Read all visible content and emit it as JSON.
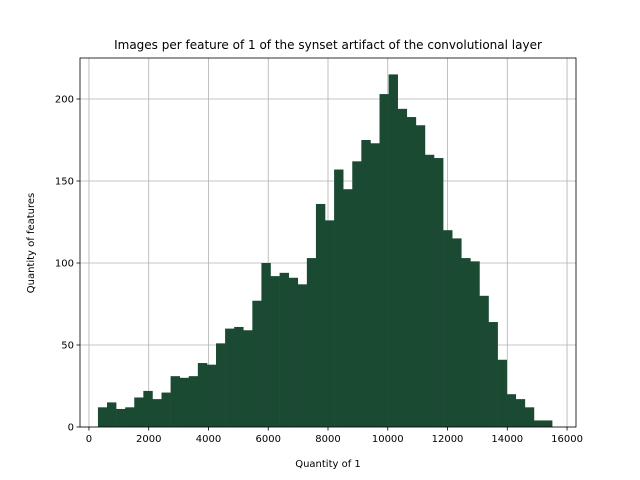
{
  "chart_data": {
    "type": "bar",
    "histogram": true,
    "title": "Images per feature of 1 of the synset artifact of the convolutional layer",
    "xlabel": "Quantity of 1",
    "ylabel": "Quantity of features",
    "xlim": [
      -300,
      16300
    ],
    "ylim": [
      0,
      225
    ],
    "xticks": [
      0,
      2000,
      4000,
      6000,
      8000,
      10000,
      12000,
      14000,
      16000
    ],
    "yticks": [
      0,
      50,
      100,
      150,
      200
    ],
    "grid": true,
    "bar_color": "#1b4a33",
    "bin_start": 300,
    "bin_width": 304,
    "counts": [
      12,
      15,
      11,
      12,
      18,
      22,
      17,
      21,
      31,
      30,
      31,
      39,
      38,
      51,
      60,
      61,
      59,
      77,
      100,
      92,
      94,
      91,
      87,
      103,
      136,
      126,
      157,
      145,
      162,
      175,
      173,
      203,
      215,
      194,
      189,
      184,
      166,
      164,
      120,
      115,
      103,
      101,
      80,
      64,
      41,
      20,
      17,
      12,
      4,
      4
    ]
  }
}
